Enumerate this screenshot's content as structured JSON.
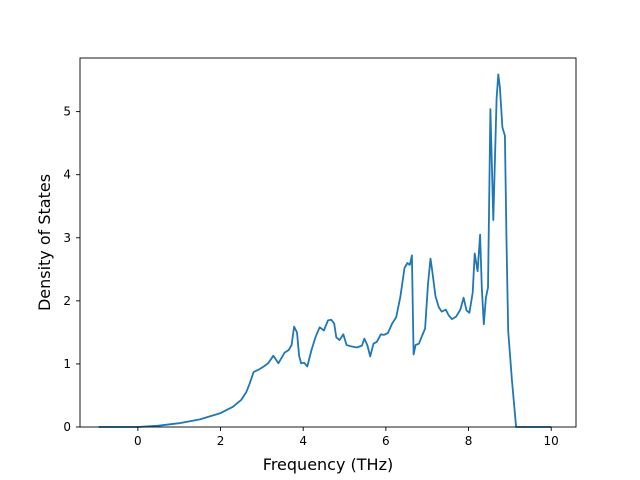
{
  "chart_data": {
    "type": "line",
    "title": "",
    "xlabel": "Frequency (THz)",
    "ylabel": "Density of States",
    "xlim": [
      -1.4,
      10.6
    ],
    "ylim": [
      0,
      5.85
    ],
    "x_ticks": [
      0,
      2,
      4,
      6,
      8,
      10
    ],
    "y_ticks": [
      0,
      1,
      2,
      3,
      4,
      5
    ],
    "grid": false,
    "legend": "none",
    "series": [
      {
        "color": "#1f77b4",
        "x": [
          -0.95,
          0.0,
          0.5,
          1.0,
          1.5,
          2.0,
          2.3,
          2.5,
          2.62,
          2.7,
          2.8,
          2.95,
          3.05,
          3.15,
          3.28,
          3.4,
          3.55,
          3.65,
          3.72,
          3.78,
          3.85,
          3.9,
          3.95,
          4.02,
          4.1,
          4.2,
          4.3,
          4.4,
          4.5,
          4.6,
          4.68,
          4.75,
          4.8,
          4.88,
          4.97,
          5.05,
          5.15,
          5.3,
          5.42,
          5.48,
          5.55,
          5.62,
          5.7,
          5.78,
          5.88,
          5.95,
          6.05,
          6.15,
          6.25,
          6.35,
          6.45,
          6.52,
          6.58,
          6.63,
          6.67,
          6.72,
          6.8,
          6.88,
          6.95,
          7.02,
          7.08,
          7.12,
          7.2,
          7.28,
          7.35,
          7.45,
          7.52,
          7.6,
          7.7,
          7.8,
          7.88,
          7.95,
          8.02,
          8.1,
          8.15,
          8.22,
          8.28,
          8.32,
          8.37,
          8.42,
          8.47,
          8.53,
          8.6,
          8.68,
          8.72,
          8.76,
          8.82,
          8.88,
          8.92,
          8.96,
          9.05,
          9.15,
          9.2,
          10.0
        ],
        "y": [
          0.0,
          0.0,
          0.02,
          0.06,
          0.12,
          0.22,
          0.32,
          0.43,
          0.55,
          0.68,
          0.87,
          0.92,
          0.96,
          1.01,
          1.13,
          1.01,
          1.18,
          1.22,
          1.3,
          1.59,
          1.5,
          1.13,
          1.01,
          1.02,
          0.96,
          1.22,
          1.43,
          1.58,
          1.53,
          1.69,
          1.7,
          1.64,
          1.42,
          1.38,
          1.47,
          1.3,
          1.28,
          1.26,
          1.29,
          1.4,
          1.3,
          1.12,
          1.32,
          1.35,
          1.47,
          1.46,
          1.49,
          1.64,
          1.74,
          2.06,
          2.52,
          2.6,
          2.57,
          2.72,
          1.15,
          1.3,
          1.32,
          1.45,
          1.56,
          2.27,
          2.67,
          2.48,
          2.07,
          1.9,
          1.83,
          1.86,
          1.77,
          1.71,
          1.75,
          1.86,
          2.05,
          1.85,
          1.81,
          2.13,
          2.75,
          2.47,
          3.05,
          2.21,
          1.63,
          2.05,
          2.21,
          5.04,
          3.28,
          5.21,
          5.59,
          5.38,
          4.75,
          4.62,
          2.86,
          1.52,
          0.75,
          0.0,
          0.0,
          0.0
        ]
      }
    ]
  }
}
